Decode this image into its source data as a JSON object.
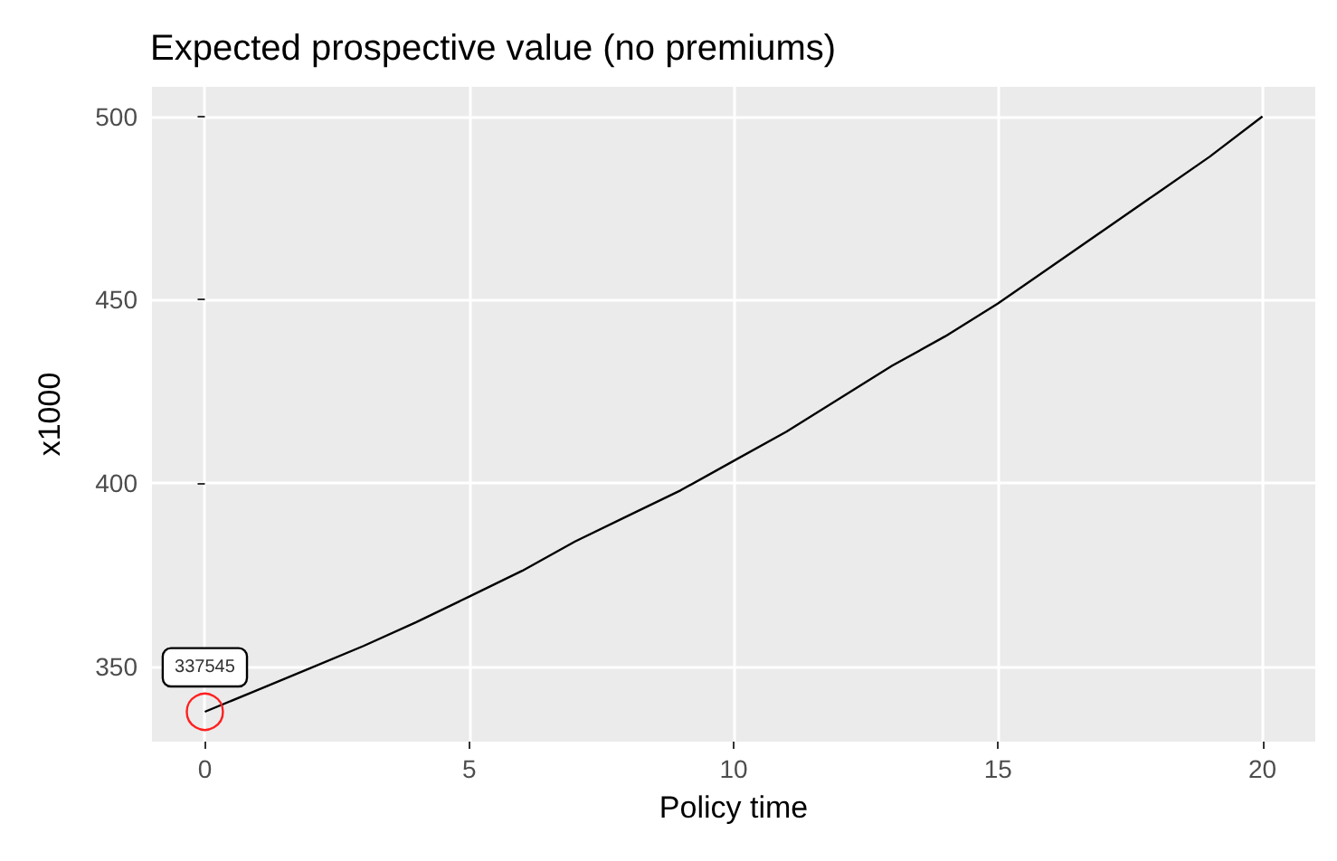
{
  "chart_data": {
    "type": "line",
    "title": "Expected prospective value (no premiums)",
    "xlabel": "Policy time",
    "ylabel": "x1000",
    "x": [
      0,
      1,
      2,
      3,
      4,
      5,
      6,
      7,
      8,
      9,
      10,
      11,
      12,
      13,
      14,
      15,
      16,
      17,
      18,
      19,
      20
    ],
    "series": [
      {
        "color": "#000000",
        "values": [
          337.545,
          343.5,
          349.5,
          355.5,
          362,
          369,
          376,
          384,
          391,
          398,
          406,
          414,
          423,
          432,
          440,
          449,
          459,
          469,
          479,
          489,
          500
        ]
      }
    ],
    "annotations": [
      {
        "text": "337545",
        "x": 0,
        "y": 337.545
      }
    ],
    "xlim": [
      -1,
      21
    ],
    "xticks": [
      0,
      5,
      10,
      15,
      20
    ],
    "ylim": [
      329.4,
      508.1
    ],
    "yticks": [
      350,
      400,
      450,
      500
    ],
    "grid": true,
    "marker": "none",
    "line_style": "solid"
  }
}
